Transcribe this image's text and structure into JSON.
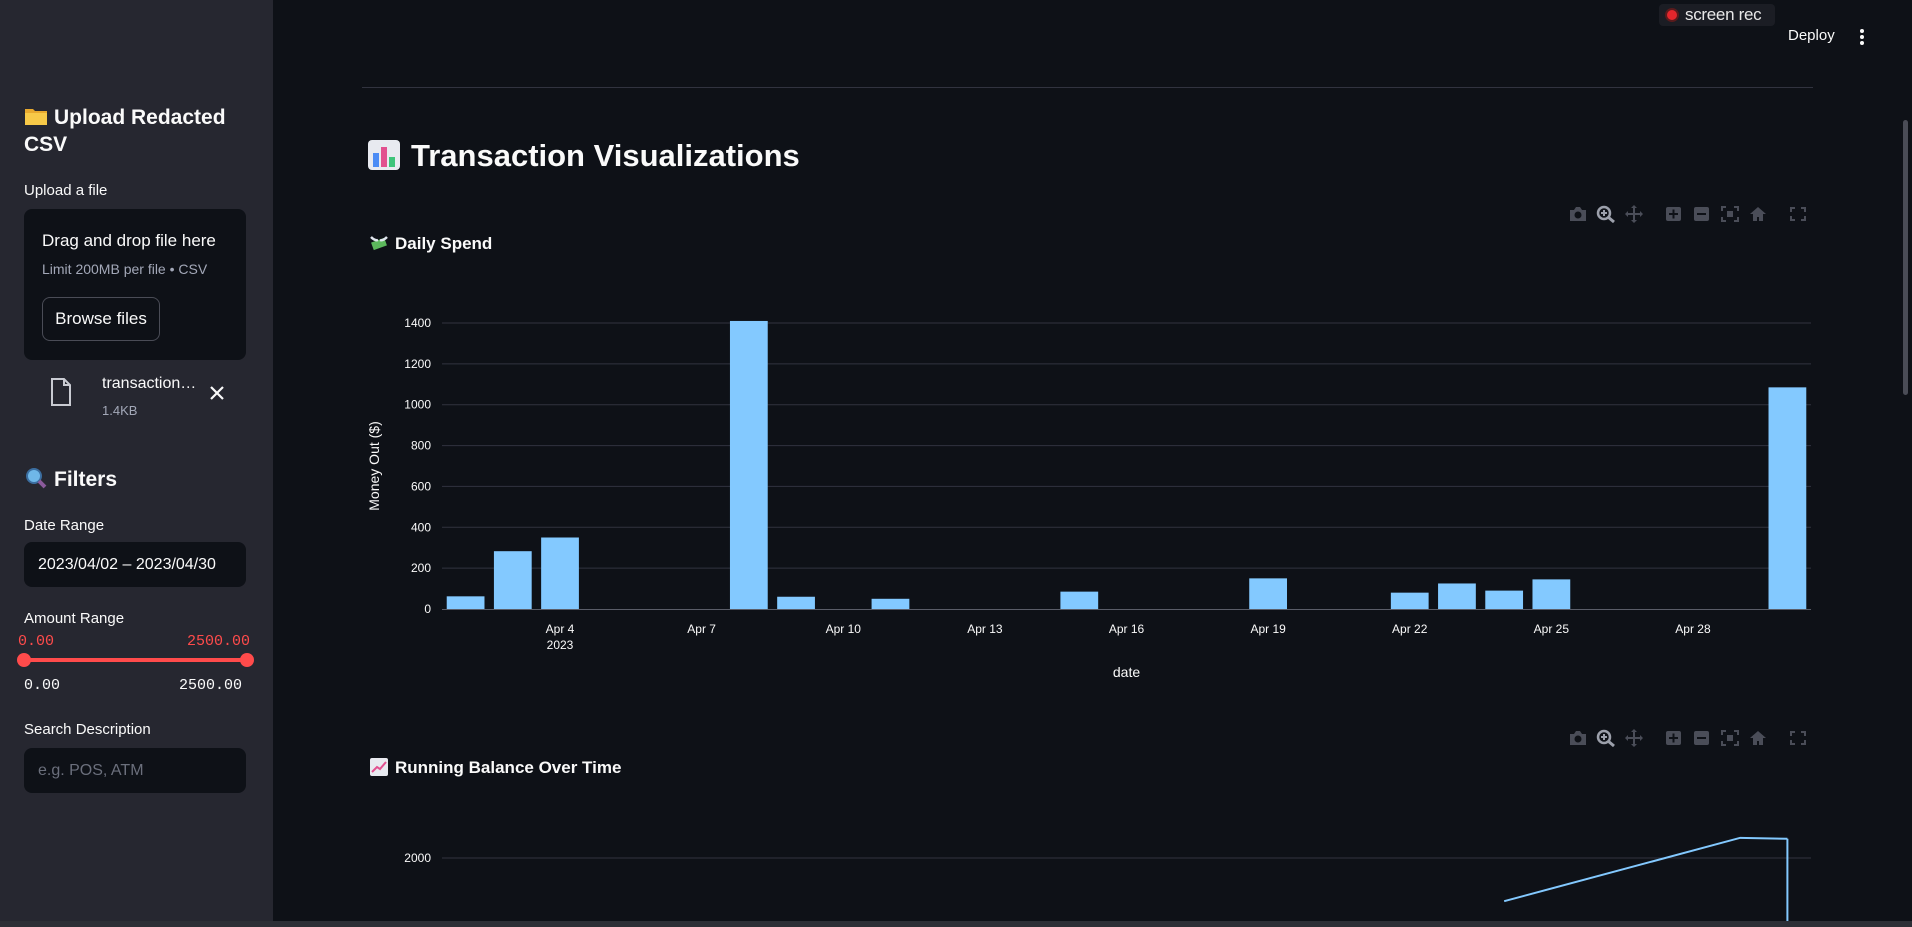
{
  "sidebar": {
    "upload_heading": "Upload Redacted CSV",
    "upload_label": "Upload a file",
    "dropzone": {
      "title": "Drag and drop file here",
      "limit": "Limit 200MB per file • CSV",
      "browse_label": "Browse files"
    },
    "file": {
      "name": "transaction…",
      "size": "1.4KB"
    },
    "filters_heading": "Filters",
    "date_range_label": "Date Range",
    "date_range_value": "2023/04/02 – 2023/04/30",
    "amount_range_label": "Amount Range",
    "amount_min_selected": "0.00",
    "amount_max_selected": "2500.00",
    "amount_min_bound": "0.00",
    "amount_max_bound": "2500.00",
    "search_label": "Search Description",
    "search_placeholder": "e.g. POS, ATM"
  },
  "header": {
    "recorder_label": "screen rec",
    "deploy_label": "Deploy"
  },
  "main": {
    "page_title": "Transaction Visualizations",
    "daily_chart_title": "Daily Spend",
    "balance_chart_title": "Running Balance Over Time"
  },
  "colors": {
    "accent": "#ff4b4b",
    "bar": "#83c9ff",
    "background": "#0e1117",
    "sidebar": "#262730"
  },
  "chart_data": [
    {
      "type": "bar",
      "title": "Daily Spend",
      "xlabel": "date",
      "ylabel": "Money Out ($)",
      "ylim": [
        0,
        1400
      ],
      "yticks": [
        0,
        200,
        400,
        600,
        800,
        1000,
        1200,
        1400
      ],
      "xlim": [
        "2023-04-01T12:00",
        "2023-04-30T12:00"
      ],
      "xticks": [
        {
          "date": "2023-04-04",
          "label": "Apr 4",
          "sublabel": "2023"
        },
        {
          "date": "2023-04-07",
          "label": "Apr 7"
        },
        {
          "date": "2023-04-10",
          "label": "Apr 10"
        },
        {
          "date": "2023-04-13",
          "label": "Apr 13"
        },
        {
          "date": "2023-04-16",
          "label": "Apr 16"
        },
        {
          "date": "2023-04-19",
          "label": "Apr 19"
        },
        {
          "date": "2023-04-22",
          "label": "Apr 22"
        },
        {
          "date": "2023-04-25",
          "label": "Apr 25"
        },
        {
          "date": "2023-04-28",
          "label": "Apr 28"
        }
      ],
      "grid": true,
      "x": [
        "2023-04-02",
        "2023-04-03",
        "2023-04-04",
        "2023-04-08",
        "2023-04-09",
        "2023-04-11",
        "2023-04-15",
        "2023-04-19",
        "2023-04-22",
        "2023-04-23",
        "2023-04-24",
        "2023-04-25",
        "2023-04-30"
      ],
      "values": [
        62,
        283,
        350,
        1410,
        60,
        50,
        85,
        150,
        80,
        125,
        90,
        145,
        1085
      ]
    },
    {
      "type": "line",
      "title": "Running Balance Over Time",
      "yticks": [
        2000
      ],
      "x": [
        "2023-04-24",
        "2023-04-29",
        "2023-04-30"
      ],
      "values": [
        1550,
        2210,
        2200
      ]
    }
  ]
}
